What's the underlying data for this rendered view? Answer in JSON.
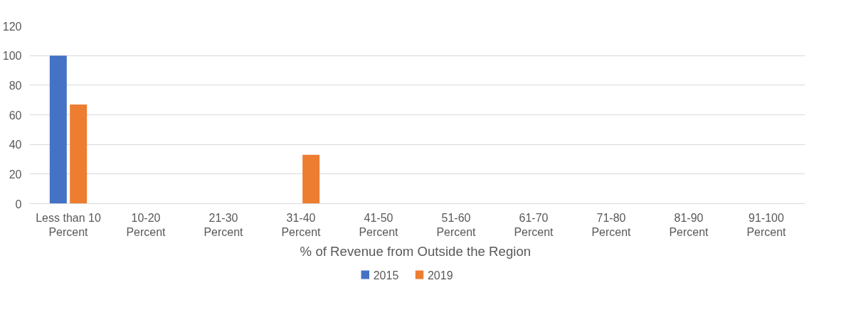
{
  "chart_data": {
    "type": "bar",
    "xlabel": "%  of Revenue from Outside the Region",
    "categories": [
      "Less than 10\nPercent",
      "10-20\nPercent",
      "21-30\nPercent",
      "31-40\nPercent",
      "41-50\nPercent",
      "51-60\nPercent",
      "61-70\nPercent",
      "71-80\nPercent",
      "81-90\nPercent",
      "91-100\nPercent"
    ],
    "series": [
      {
        "name": "2015",
        "color": "#4472c4",
        "values": [
          100,
          0,
          0,
          0,
          0,
          0,
          0,
          0,
          0,
          0
        ]
      },
      {
        "name": "2019",
        "color": "#ed7d31",
        "values": [
          67,
          0,
          0,
          33,
          0,
          0,
          0,
          0,
          0,
          0
        ]
      }
    ],
    "ylim": [
      0,
      120
    ],
    "yticks": [
      0,
      20,
      40,
      60,
      80,
      100,
      120
    ],
    "grid": "y",
    "legend": "bottom"
  }
}
